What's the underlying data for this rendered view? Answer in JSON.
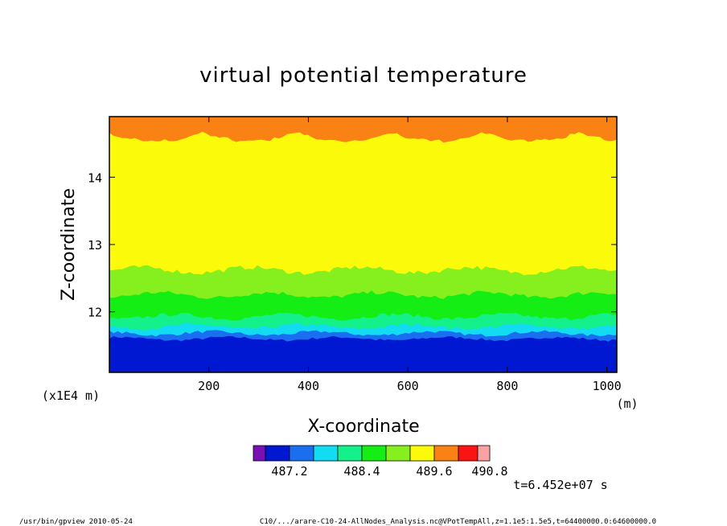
{
  "chart_data": {
    "type": "heatmap",
    "title": "virtual potential temperature",
    "xlabel": "X-coordinate",
    "ylabel": "Z-coordinate",
    "x_unit": "(m)",
    "y_unit": "(x1E4 m)",
    "xlim": [
      0,
      1020
    ],
    "ylim": [
      11.1,
      14.9
    ],
    "x_ticks": [
      200,
      400,
      600,
      800,
      1000
    ],
    "y_ticks": [
      12,
      13,
      14
    ],
    "colorbar": {
      "colors": [
        "#7a0fb4",
        "#0018d2",
        "#1a6ef0",
        "#12dcf2",
        "#14f08a",
        "#14ee14",
        "#86f01e",
        "#fafa0a",
        "#fa8214",
        "#fa1414",
        "#f8a2a2"
      ],
      "tick_labels": [
        "487.2",
        "488.4",
        "489.6",
        "490.8"
      ],
      "tick_boundary_index": [
        2,
        5,
        8,
        11
      ]
    },
    "level_boundaries_z": [
      {
        "level": 1,
        "top_z": 11.6,
        "color": "#0018d2"
      },
      {
        "level": 2,
        "top_z": 11.68,
        "color": "#1a6ef0"
      },
      {
        "level": 3,
        "top_z": 11.78,
        "color": "#12dcf2"
      },
      {
        "level": 4,
        "top_z": 11.93,
        "color": "#14f08a"
      },
      {
        "level": 5,
        "top_z": 12.25,
        "color": "#14ee14"
      },
      {
        "level": 6,
        "top_z": 12.62,
        "color": "#86f01e"
      },
      {
        "level": 7,
        "top_z": 14.68,
        "color": "#fafa0a"
      },
      {
        "level": 8,
        "top_z": 14.9,
        "color": "#fa8214"
      }
    ],
    "time_label": "t=6.452e+07 s",
    "footer_left": "/usr/bin/gpview  2010-05-24",
    "footer_right": "C10/.../arare-C10-24-AllNodes_Analysis.nc@VPotTempAll,z=1.1e5:1.5e5,t=64400000.0:64600000.0"
  }
}
